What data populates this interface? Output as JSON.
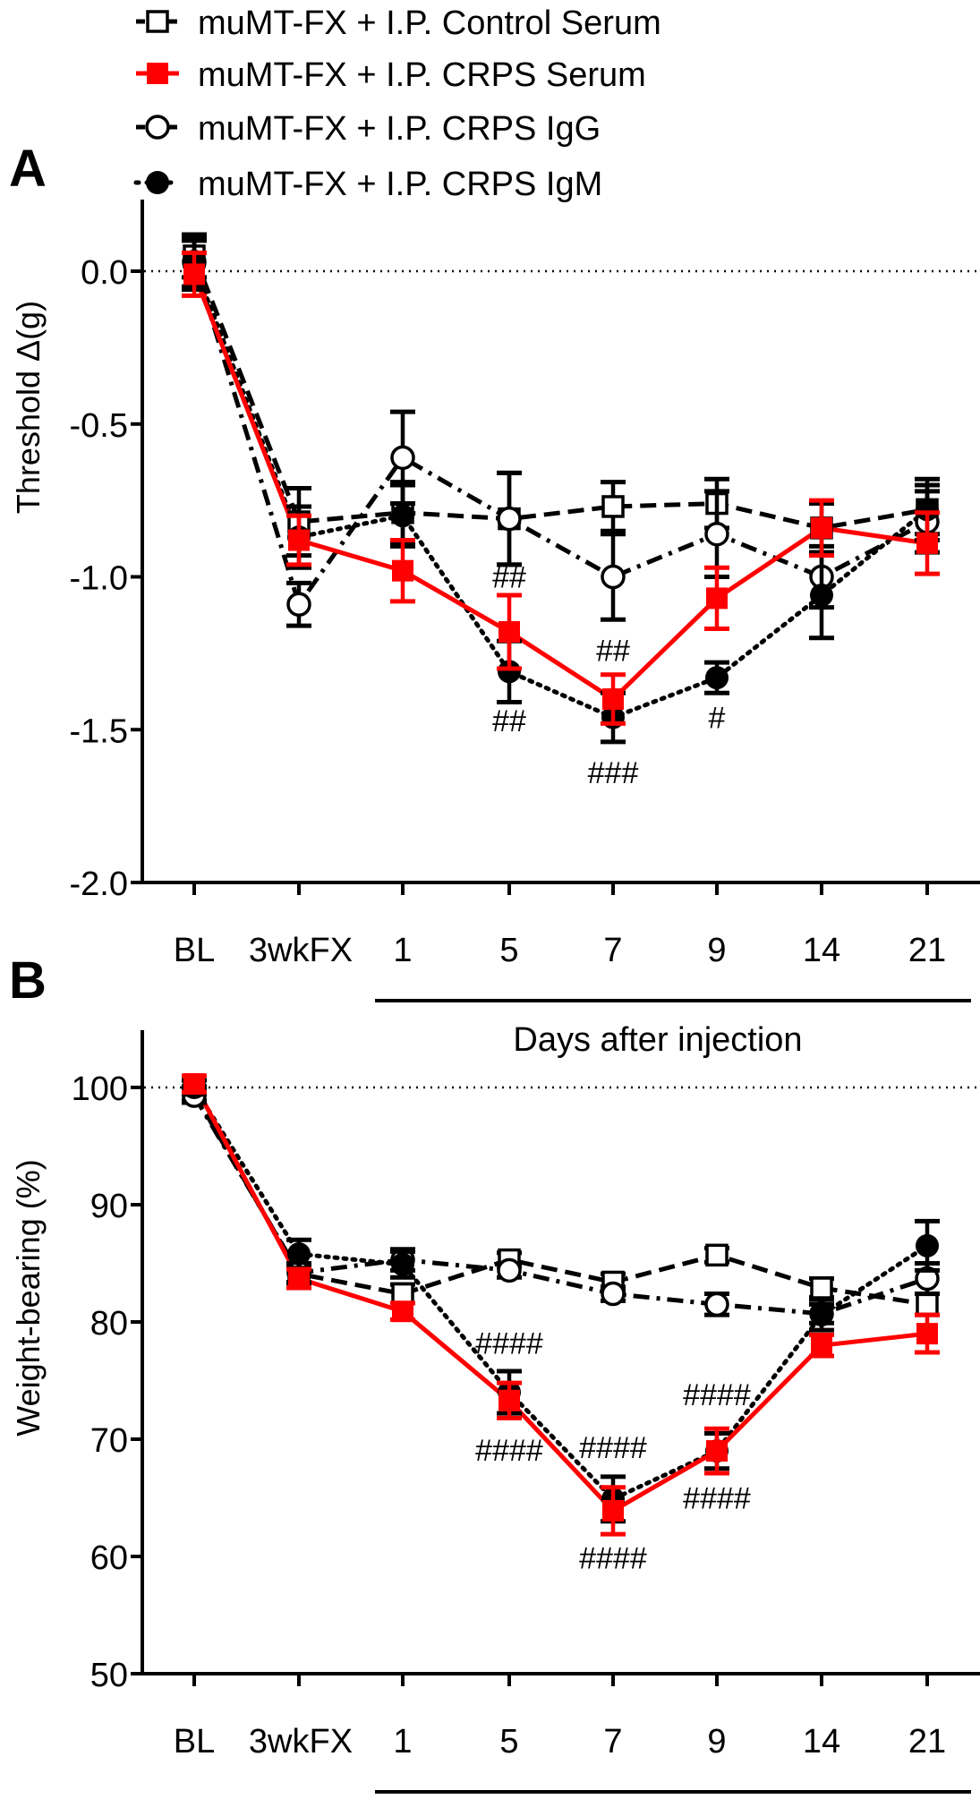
{
  "legend": [
    {
      "label": "muMT-FX + I.P. Control Serum",
      "marker": "open-square",
      "line": "dashed",
      "color": "#000000"
    },
    {
      "label": "muMT-FX + I.P. CRPS Serum",
      "marker": "filled-square",
      "line": "solid",
      "color": "#ff0000"
    },
    {
      "label": "muMT-FX + I.P. CRPS IgG",
      "marker": "open-circle",
      "line": "dash-dot",
      "color": "#000000"
    },
    {
      "label": "muMT-FX + I.P. CRPS IgM",
      "marker": "filled-circle",
      "line": "dotted",
      "color": "#000000"
    }
  ],
  "chart_data": [
    {
      "panel": "A",
      "type": "line",
      "ylabel": "Threshold Δ(g)",
      "xlabel": "Days after injection",
      "categories": [
        "BL",
        "3wkFX",
        "1",
        "5",
        "7",
        "9",
        "14",
        "21"
      ],
      "ylim": [
        -2.0,
        0.23
      ],
      "yticks": [
        "0.0",
        "-0.5",
        "-1.0",
        "-1.5",
        "-2.0"
      ],
      "ytick_values": [
        0,
        -0.5,
        -1.0,
        -1.5,
        -2.0
      ],
      "reference_line": 0,
      "series": [
        {
          "name": "muMT-FX + I.P. Control Serum",
          "values": [
            0.05,
            -0.82,
            -0.79,
            -0.81,
            -0.77,
            -0.76,
            -0.84,
            -0.78
          ],
          "errors": [
            0.07,
            0.11,
            0.1,
            0.15,
            0.08,
            0.08,
            0.08,
            0.1
          ]
        },
        {
          "name": "muMT-FX + I.P. CRPS Serum",
          "values": [
            -0.01,
            -0.88,
            -0.98,
            -1.18,
            -1.4,
            -1.07,
            -0.84,
            -0.89
          ],
          "errors": [
            0.07,
            0.08,
            0.1,
            0.12,
            0.08,
            0.1,
            0.09,
            0.1
          ]
        },
        {
          "name": "muMT-FX + I.P. CRPS IgG",
          "values": [
            0.03,
            -1.09,
            -0.61,
            -0.81,
            -1.0,
            -0.86,
            -1.0,
            -0.82
          ],
          "errors": [
            0.08,
            0.07,
            0.15,
            0.15,
            0.14,
            0.14,
            0.1,
            0.1
          ]
        },
        {
          "name": "muMT-FX + I.P. CRPS IgM",
          "values": [
            0.02,
            -0.87,
            -0.8,
            -1.31,
            -1.46,
            -1.33,
            -1.06,
            -0.78
          ],
          "errors": [
            0.08,
            0.1,
            0.1,
            0.1,
            0.08,
            0.05,
            0.14,
            0.08
          ]
        }
      ],
      "annotations": [
        {
          "text": "##",
          "category": "5",
          "y": -1.0
        },
        {
          "text": "##",
          "category": "5",
          "y": -1.47
        },
        {
          "text": "##",
          "category": "7",
          "y": -1.24
        },
        {
          "text": "###",
          "category": "7",
          "y": -1.64
        },
        {
          "text": "#",
          "category": "9",
          "y": -1.46
        }
      ]
    },
    {
      "panel": "B",
      "type": "line",
      "ylabel": "Weight-bearing (%)",
      "xlabel": "Days after injection",
      "categories": [
        "BL",
        "3wkFX",
        "1",
        "5",
        "7",
        "9",
        "14",
        "21"
      ],
      "ylim": [
        50,
        105
      ],
      "yticks": [
        "100",
        "90",
        "80",
        "70",
        "60",
        "50"
      ],
      "ytick_values": [
        100,
        90,
        80,
        70,
        60,
        50
      ],
      "reference_line": 100,
      "series": [
        {
          "name": "muMT-FX + I.P. Control Serum",
          "values": [
            99.5,
            84.1,
            82.4,
            85.3,
            83.4,
            85.7,
            82.9,
            81.5
          ],
          "errors": [
            0.6,
            0.8,
            0.8,
            0.6,
            0.7,
            0.6,
            0.8,
            0.9
          ]
        },
        {
          "name": "muMT-FX + I.P. CRPS Serum",
          "values": [
            100.3,
            83.7,
            80.9,
            73.3,
            63.9,
            69.0,
            78.0,
            79.0
          ],
          "errors": [
            0.7,
            0.8,
            0.7,
            1.5,
            2.0,
            1.9,
            0.9,
            1.6
          ]
        },
        {
          "name": "muMT-FX + I.P. CRPS IgG",
          "values": [
            99.3,
            84.2,
            85.3,
            84.4,
            82.4,
            81.5,
            80.7,
            83.7
          ],
          "errors": [
            0.6,
            0.8,
            0.9,
            0.6,
            0.6,
            0.9,
            0.8,
            1.3
          ]
        },
        {
          "name": "muMT-FX + I.P. CRPS IgM",
          "values": [
            100.0,
            85.8,
            84.9,
            74.0,
            64.9,
            69.0,
            80.6,
            86.5
          ],
          "errors": [
            0.6,
            1.2,
            1.1,
            1.8,
            1.9,
            1.5,
            1.3,
            2.1
          ]
        }
      ],
      "annotations": [
        {
          "text": "####",
          "category": "5",
          "y": 78.2
        },
        {
          "text": "####",
          "category": "5",
          "y": 69.1
        },
        {
          "text": "####",
          "category": "7",
          "y": 69.3
        },
        {
          "text": "####",
          "category": "7",
          "y": 59.9
        },
        {
          "text": "####",
          "category": "9",
          "y": 73.8
        },
        {
          "text": "####",
          "category": "9",
          "y": 65.0
        }
      ]
    }
  ],
  "panels": [
    {
      "letter": "A"
    },
    {
      "letter": "B"
    }
  ]
}
